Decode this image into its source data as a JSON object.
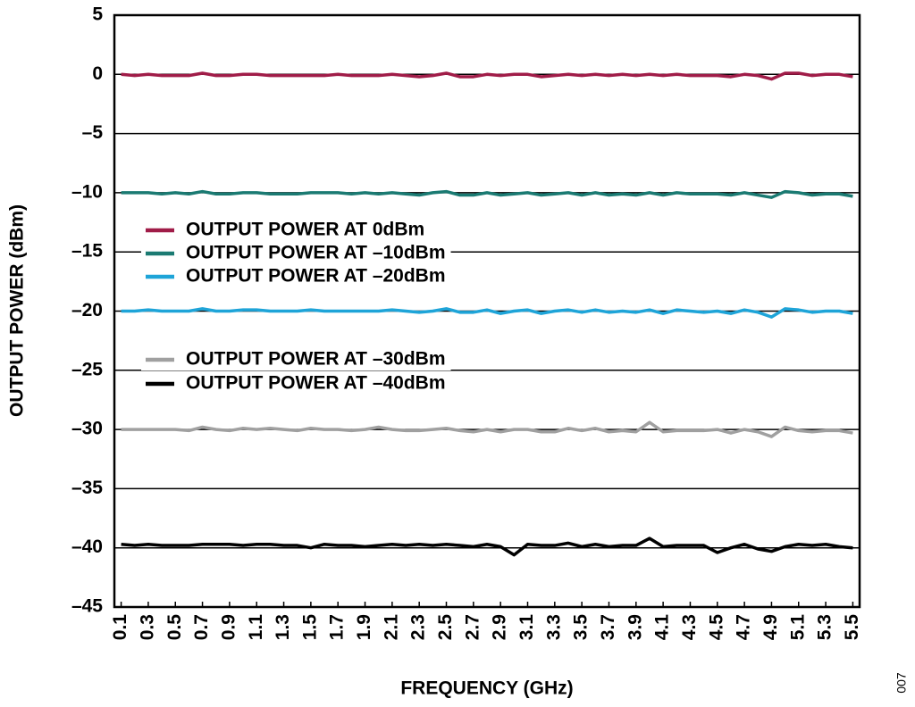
{
  "chart_data": {
    "type": "line",
    "x_label": "FREQUENCY (GHz)",
    "y_label": "OUTPUT POWER (dBm)",
    "annotation": "007",
    "x": [
      0.1,
      0.2,
      0.3,
      0.4,
      0.5,
      0.6,
      0.7,
      0.8,
      0.9,
      1.0,
      1.1,
      1.2,
      1.3,
      1.4,
      1.5,
      1.6,
      1.7,
      1.8,
      1.9,
      2.0,
      2.1,
      2.2,
      2.3,
      2.4,
      2.5,
      2.6,
      2.7,
      2.8,
      2.9,
      3.0,
      3.1,
      3.2,
      3.3,
      3.4,
      3.5,
      3.6,
      3.7,
      3.8,
      3.9,
      4.0,
      4.1,
      4.2,
      4.3,
      4.4,
      4.5,
      4.6,
      4.7,
      4.8,
      4.9,
      5.0,
      5.1,
      5.2,
      5.3,
      5.4,
      5.5
    ],
    "xlim": [
      0.05,
      5.55
    ],
    "xticks": [
      0.1,
      0.3,
      0.5,
      0.7,
      0.9,
      1.1,
      1.3,
      1.5,
      1.7,
      1.9,
      2.1,
      2.3,
      2.5,
      2.7,
      2.9,
      3.1,
      3.3,
      3.5,
      3.7,
      3.9,
      4.1,
      4.3,
      4.5,
      4.7,
      4.9,
      5.1,
      5.3,
      5.5
    ],
    "ylim": [
      -45,
      5
    ],
    "yticks": [
      {
        "value": -45,
        "label": "–45"
      },
      {
        "value": -40,
        "label": "–40"
      },
      {
        "value": -35,
        "label": "–35"
      },
      {
        "value": -30,
        "label": "–30"
      },
      {
        "value": -25,
        "label": "–25"
      },
      {
        "value": -20,
        "label": "–20"
      },
      {
        "value": -15,
        "label": "–15"
      },
      {
        "value": -10,
        "label": "–10"
      },
      {
        "value": -5,
        "label": "–5"
      },
      0,
      5
    ],
    "grid": true,
    "series": [
      {
        "name": "OUTPUT POWER AT 0dBm",
        "color": "#a01c48",
        "values": [
          0,
          -0.1,
          0,
          -0.1,
          -0.1,
          -0.1,
          0.1,
          -0.1,
          -0.1,
          0,
          0,
          -0.1,
          -0.1,
          -0.1,
          -0.1,
          -0.1,
          0,
          -0.1,
          -0.1,
          -0.1,
          0,
          -0.1,
          -0.2,
          -0.1,
          0.1,
          -0.2,
          -0.2,
          0,
          -0.1,
          0,
          0,
          -0.2,
          -0.1,
          0,
          -0.1,
          0,
          -0.1,
          0,
          -0.1,
          0,
          -0.1,
          0,
          -0.1,
          -0.1,
          -0.1,
          -0.2,
          0,
          -0.1,
          -0.4,
          0.1,
          0.1,
          -0.1,
          0,
          0,
          -0.2
        ]
      },
      {
        "name": "OUTPUT POWER AT –10dBm",
        "color": "#1a7a72",
        "values": [
          -10,
          -10,
          -10,
          -10.1,
          -10,
          -10.1,
          -9.9,
          -10.1,
          -10.1,
          -10,
          -10,
          -10.1,
          -10.1,
          -10.1,
          -10,
          -10,
          -10,
          -10.1,
          -10,
          -10.1,
          -10,
          -10.1,
          -10.2,
          -10,
          -9.9,
          -10.2,
          -10.2,
          -10,
          -10.2,
          -10.1,
          -10,
          -10.2,
          -10.1,
          -10,
          -10.2,
          -10,
          -10.2,
          -10.1,
          -10.2,
          -10,
          -10.2,
          -10,
          -10.1,
          -10.1,
          -10.1,
          -10.2,
          -10,
          -10.2,
          -10.4,
          -9.9,
          -10,
          -10.2,
          -10.1,
          -10.1,
          -10.3
        ]
      },
      {
        "name": "OUTPUT POWER AT –20dBm",
        "color": "#1ea4d8",
        "values": [
          -20,
          -20,
          -19.9,
          -20,
          -20,
          -20,
          -19.8,
          -20,
          -20,
          -19.9,
          -19.9,
          -20,
          -20,
          -20,
          -19.9,
          -20,
          -20,
          -20,
          -20,
          -20,
          -19.9,
          -20,
          -20.1,
          -20,
          -19.8,
          -20.1,
          -20.1,
          -19.9,
          -20.2,
          -20,
          -19.9,
          -20.2,
          -20,
          -19.9,
          -20.1,
          -19.9,
          -20.1,
          -20,
          -20.1,
          -19.9,
          -20.2,
          -19.9,
          -20,
          -20.1,
          -20,
          -20.2,
          -19.9,
          -20.1,
          -20.5,
          -19.8,
          -19.9,
          -20.1,
          -20,
          -20,
          -20.2
        ]
      },
      {
        "name": "OUTPUT POWER AT –30dBm",
        "color": "#a0a0a0",
        "values": [
          -30,
          -30,
          -30,
          -30,
          -30,
          -30.1,
          -29.8,
          -30,
          -30.1,
          -29.9,
          -30,
          -29.9,
          -30,
          -30.1,
          -29.9,
          -30,
          -30,
          -30.1,
          -30,
          -29.8,
          -30,
          -30.1,
          -30.1,
          -30,
          -29.9,
          -30.1,
          -30.2,
          -30,
          -30.2,
          -30,
          -30,
          -30.2,
          -30.2,
          -29.9,
          -30.1,
          -29.9,
          -30.2,
          -30.1,
          -30.2,
          -29.4,
          -30.2,
          -30.1,
          -30.1,
          -30.1,
          -30,
          -30.3,
          -30,
          -30.2,
          -30.6,
          -29.8,
          -30.1,
          -30.2,
          -30.1,
          -30.1,
          -30.3
        ]
      },
      {
        "name": "OUTPUT POWER AT –40dBm",
        "color": "#000000",
        "values": [
          -39.7,
          -39.8,
          -39.7,
          -39.8,
          -39.8,
          -39.8,
          -39.7,
          -39.7,
          -39.7,
          -39.8,
          -39.7,
          -39.7,
          -39.8,
          -39.8,
          -40,
          -39.7,
          -39.8,
          -39.8,
          -39.9,
          -39.8,
          -39.7,
          -39.8,
          -39.7,
          -39.8,
          -39.7,
          -39.8,
          -39.9,
          -39.7,
          -39.9,
          -40.6,
          -39.7,
          -39.8,
          -39.8,
          -39.6,
          -39.9,
          -39.7,
          -39.9,
          -39.8,
          -39.8,
          -39.2,
          -39.9,
          -39.8,
          -39.8,
          -39.8,
          -40.4,
          -40,
          -39.7,
          -40.1,
          -40.3,
          -39.9,
          -39.7,
          -39.8,
          -39.7,
          -39.9,
          -40
        ]
      }
    ]
  }
}
